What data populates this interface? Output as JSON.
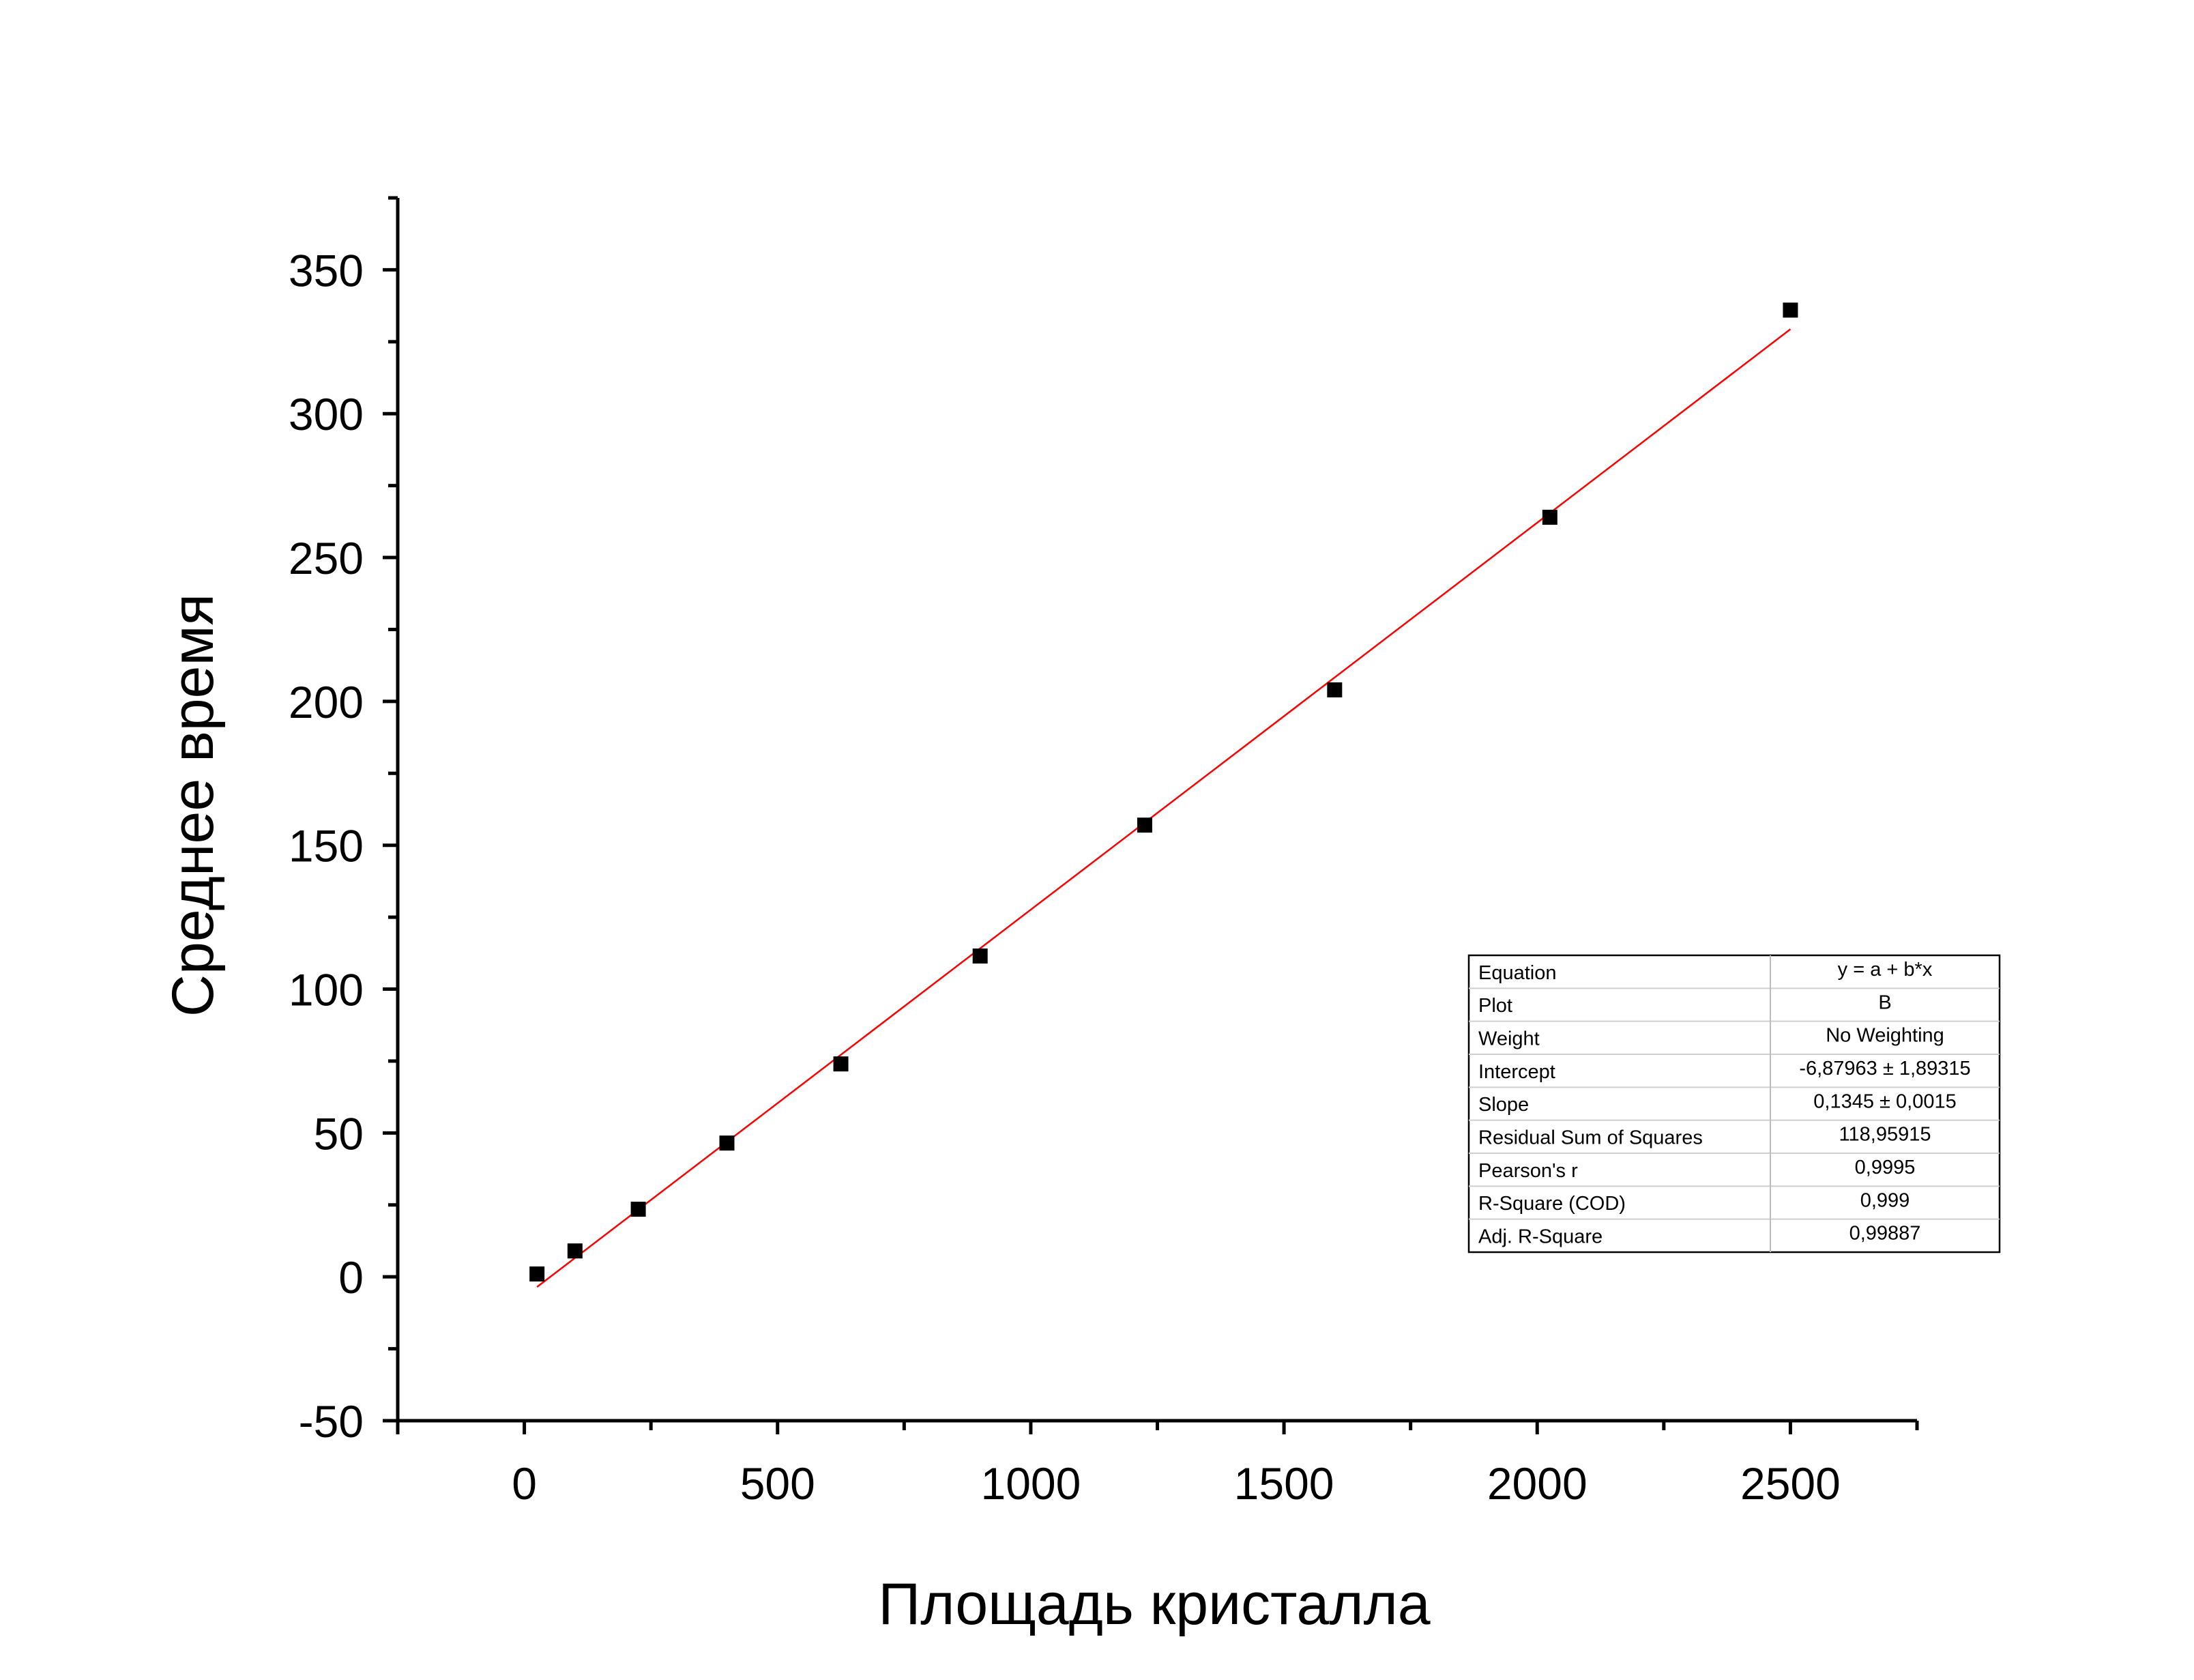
{
  "chart_data": {
    "type": "scatter",
    "title": "",
    "xlabel": "Площадь кристалла",
    "ylabel": "Среднее время",
    "xlim": [
      -250,
      2750
    ],
    "ylim": [
      -50,
      375
    ],
    "x_ticks": [
      0,
      500,
      1000,
      1500,
      2000,
      2500
    ],
    "x_tick_labels": [
      "0",
      "500",
      "1000",
      "1500",
      "2000",
      "2500"
    ],
    "y_ticks": [
      -50,
      0,
      50,
      100,
      150,
      200,
      250,
      300,
      350
    ],
    "y_tick_labels": [
      "-50",
      "0",
      "50",
      "100",
      "150",
      "200",
      "250",
      "300",
      "350"
    ],
    "grid": false,
    "series": [
      {
        "type": "scatter",
        "marker": "square",
        "color": "#000000",
        "x": [
          25,
          100,
          225,
          400,
          625,
          900,
          1225,
          1600,
          2025,
          2500
        ],
        "y": [
          1,
          9,
          23.5,
          46.5,
          74,
          111.5,
          157,
          204,
          264,
          336
        ]
      },
      {
        "type": "line",
        "color": "#ff0000",
        "x": [
          25,
          2500
        ],
        "y": [
          -3.52,
          329.37
        ]
      }
    ],
    "stats_table": [
      [
        "Equation",
        "y = a + b*x"
      ],
      [
        "Plot",
        "B"
      ],
      [
        "Weight",
        "No Weighting"
      ],
      [
        "Intercept",
        "-6,87963 ± 1,89315"
      ],
      [
        "Slope",
        "0,1345 ± 0,0015"
      ],
      [
        "Residual Sum of Squares",
        "118,95915"
      ],
      [
        "Pearson's r",
        "0,9995"
      ],
      [
        "R-Square (COD)",
        "0,999"
      ],
      [
        "Adj. R-Square",
        "0,99887"
      ]
    ]
  }
}
